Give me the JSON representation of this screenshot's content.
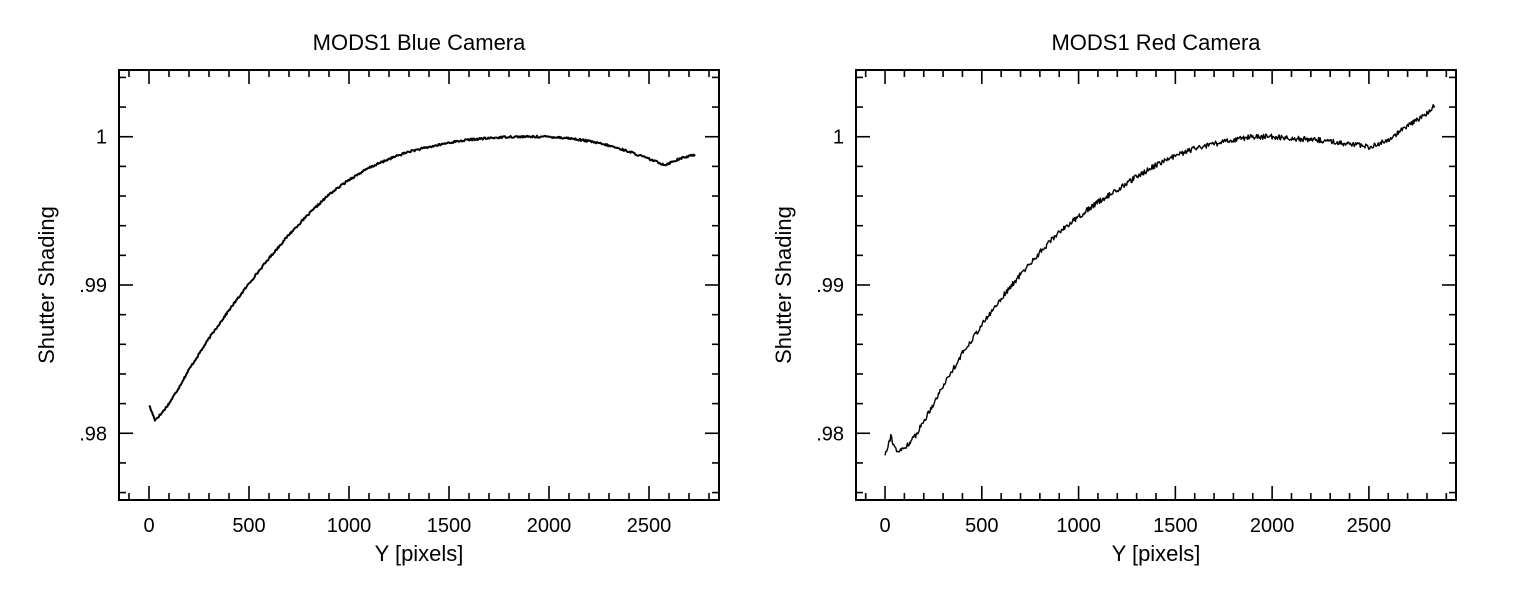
{
  "chart_data": [
    {
      "type": "line",
      "title": "MODS1 Blue Camera",
      "xlabel": "Y [pixels]",
      "ylabel": "Shutter Shading",
      "xlim": [
        -150,
        2850
      ],
      "ylim": [
        0.9755,
        1.0045
      ],
      "xticks": [
        0,
        500,
        1000,
        1500,
        2000,
        2500
      ],
      "xtick_labels": [
        "0",
        "500",
        "1000",
        "1500",
        "2000",
        "2500"
      ],
      "yticks": [
        0.98,
        0.99,
        1.0
      ],
      "ytick_labels": [
        ".98",
        ".99",
        "1"
      ],
      "noise_level": 7e-05,
      "series": [
        {
          "x": [
            0,
            30,
            60,
            100,
            150,
            200,
            300,
            400,
            500,
            600,
            700,
            800,
            900,
            1000,
            1100,
            1200,
            1300,
            1400,
            1500,
            1600,
            1700,
            1800,
            1900,
            2000,
            2100,
            2200,
            2300,
            2400,
            2500,
            2580,
            2650,
            2730
          ],
          "y": [
            0.9819,
            0.9809,
            0.9813,
            0.982,
            0.9831,
            0.9843,
            0.9864,
            0.9883,
            0.9901,
            0.9918,
            0.9934,
            0.9948,
            0.9961,
            0.9971,
            0.9979,
            0.9985,
            0.999,
            0.9993,
            0.9996,
            0.9998,
            0.9999,
            1.0,
            1.0,
            1.0,
            0.9999,
            0.9997,
            0.9994,
            0.999,
            0.9985,
            0.9981,
            0.9985,
            0.9988
          ]
        }
      ]
    },
    {
      "type": "line",
      "title": "MODS1 Red Camera",
      "xlabel": "Y [pixels]",
      "ylabel": "Shutter Shading",
      "xlim": [
        -150,
        2950
      ],
      "ylim": [
        0.9755,
        1.0045
      ],
      "xticks": [
        0,
        500,
        1000,
        1500,
        2000,
        2500
      ],
      "xtick_labels": [
        "0",
        "500",
        "1000",
        "1500",
        "2000",
        "2500"
      ],
      "yticks": [
        0.98,
        0.99,
        1.0
      ],
      "ytick_labels": [
        ".98",
        ".99",
        "1"
      ],
      "noise_level": 0.00018,
      "series": [
        {
          "x": [
            0,
            30,
            60,
            100,
            150,
            200,
            300,
            400,
            500,
            600,
            700,
            800,
            900,
            1000,
            1100,
            1200,
            1300,
            1400,
            1500,
            1600,
            1700,
            1800,
            1900,
            2000,
            2100,
            2200,
            2300,
            2400,
            2500,
            2600,
            2700,
            2800,
            2840
          ],
          "y": [
            0.9786,
            0.9798,
            0.9787,
            0.979,
            0.9797,
            0.9808,
            0.9832,
            0.9854,
            0.9873,
            0.9891,
            0.9907,
            0.9922,
            0.9936,
            0.9946,
            0.9956,
            0.9964,
            0.9973,
            0.9981,
            0.9987,
            0.9992,
            0.9995,
            0.9998,
            1.0,
            1.0,
            0.9999,
            0.9998,
            0.9997,
            0.9995,
            0.9993,
            0.9998,
            1.0007,
            1.0016,
            1.0021
          ]
        }
      ]
    }
  ]
}
